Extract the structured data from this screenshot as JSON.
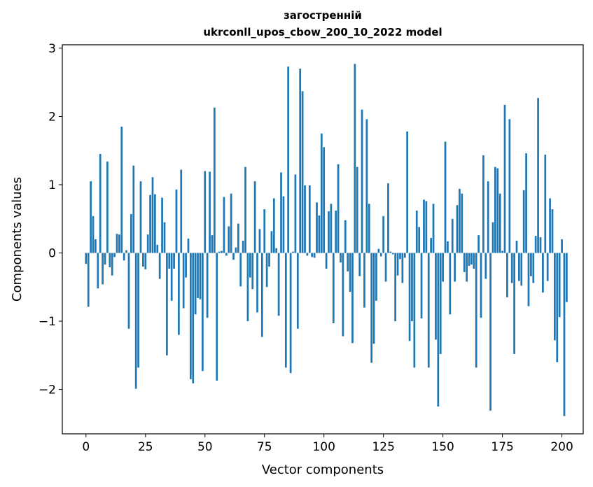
{
  "chart_data": {
    "type": "bar",
    "title_line1": "загостренній",
    "title_line2": "ukrconll_upos_cbow_200_10_2022 model",
    "xlabel": "Vector components",
    "ylabel": "Components values",
    "xlim": [
      -9.95,
      208.95
    ],
    "ylim": [
      -2.65,
      3.05
    ],
    "xticks": [
      0,
      25,
      50,
      75,
      100,
      125,
      150,
      175,
      200
    ],
    "yticks": [
      -2,
      -1,
      0,
      1,
      2,
      3
    ],
    "ytick_labels": [
      "−2",
      "−1",
      "0",
      "1",
      "2",
      "3"
    ],
    "grid": false,
    "bar_color": "#1f77b4",
    "values": [
      -0.16,
      -0.79,
      1.05,
      0.54,
      0.2,
      -0.52,
      1.45,
      -0.46,
      -0.17,
      1.34,
      -0.21,
      -0.33,
      -0.06,
      0.28,
      0.27,
      1.85,
      -0.11,
      0.04,
      -1.11,
      0.57,
      1.28,
      -1.99,
      -1.68,
      1.05,
      -0.2,
      -0.24,
      0.27,
      0.85,
      1.11,
      0.86,
      0.12,
      -0.38,
      0.81,
      0.45,
      -1.5,
      -0.23,
      -0.7,
      -0.23,
      0.93,
      -1.2,
      1.22,
      -0.81,
      -0.36,
      0.21,
      -1.85,
      -1.91,
      -0.9,
      -0.66,
      -0.68,
      -1.73,
      1.2,
      -0.95,
      1.19,
      0.26,
      2.13,
      -1.87,
      0.02,
      0.03,
      0.82,
      -0.04,
      0.39,
      0.87,
      -0.1,
      0.08,
      0.43,
      -0.49,
      0.18,
      1.26,
      -1.0,
      -0.36,
      -0.53,
      1.05,
      -0.87,
      0.35,
      -1.23,
      0.64,
      -0.5,
      -0.2,
      0.32,
      0.8,
      0.07,
      -0.92,
      1.18,
      0.83,
      -1.68,
      2.73,
      -1.76,
      0.02,
      1.15,
      -1.11,
      2.7,
      2.37,
      0.99,
      -0.04,
      0.99,
      -0.06,
      -0.07,
      0.74,
      0.55,
      1.75,
      1.55,
      -0.23,
      0.61,
      0.72,
      -1.03,
      0.62,
      1.3,
      -0.14,
      -1.22,
      0.48,
      -0.27,
      -0.57,
      -1.32,
      2.77,
      1.26,
      -0.34,
      2.1,
      -0.8,
      1.96,
      0.72,
      -1.61,
      -1.33,
      -0.7,
      0.06,
      -0.05,
      0.54,
      -0.42,
      1.02,
      0.02,
      -0.02,
      -1.0,
      -0.33,
      -0.09,
      -0.44,
      -0.07,
      1.78,
      -1.29,
      -1.0,
      -1.68,
      0.62,
      0.38,
      -0.96,
      0.78,
      0.76,
      -1.68,
      0.22,
      0.72,
      -1.27,
      -2.25,
      -1.48,
      -0.42,
      1.63,
      0.17,
      -0.9,
      0.5,
      -0.42,
      0.7,
      0.94,
      0.87,
      -0.28,
      -0.42,
      -0.19,
      -0.17,
      -0.23,
      -1.68,
      0.26,
      -0.95,
      1.43,
      -0.38,
      1.05,
      -2.31,
      0.45,
      1.26,
      1.24,
      0.87,
      0.03,
      2.17,
      -0.65,
      1.96,
      -0.44,
      -1.48,
      0.18,
      -0.41,
      -0.48,
      0.92,
      1.46,
      -0.78,
      -0.34,
      -0.44,
      0.25,
      2.27,
      0.23,
      -0.58,
      1.44,
      -0.41,
      0.8,
      0.64,
      -1.28,
      -1.6,
      -0.94,
      0.2,
      -2.39,
      -0.72
    ]
  }
}
